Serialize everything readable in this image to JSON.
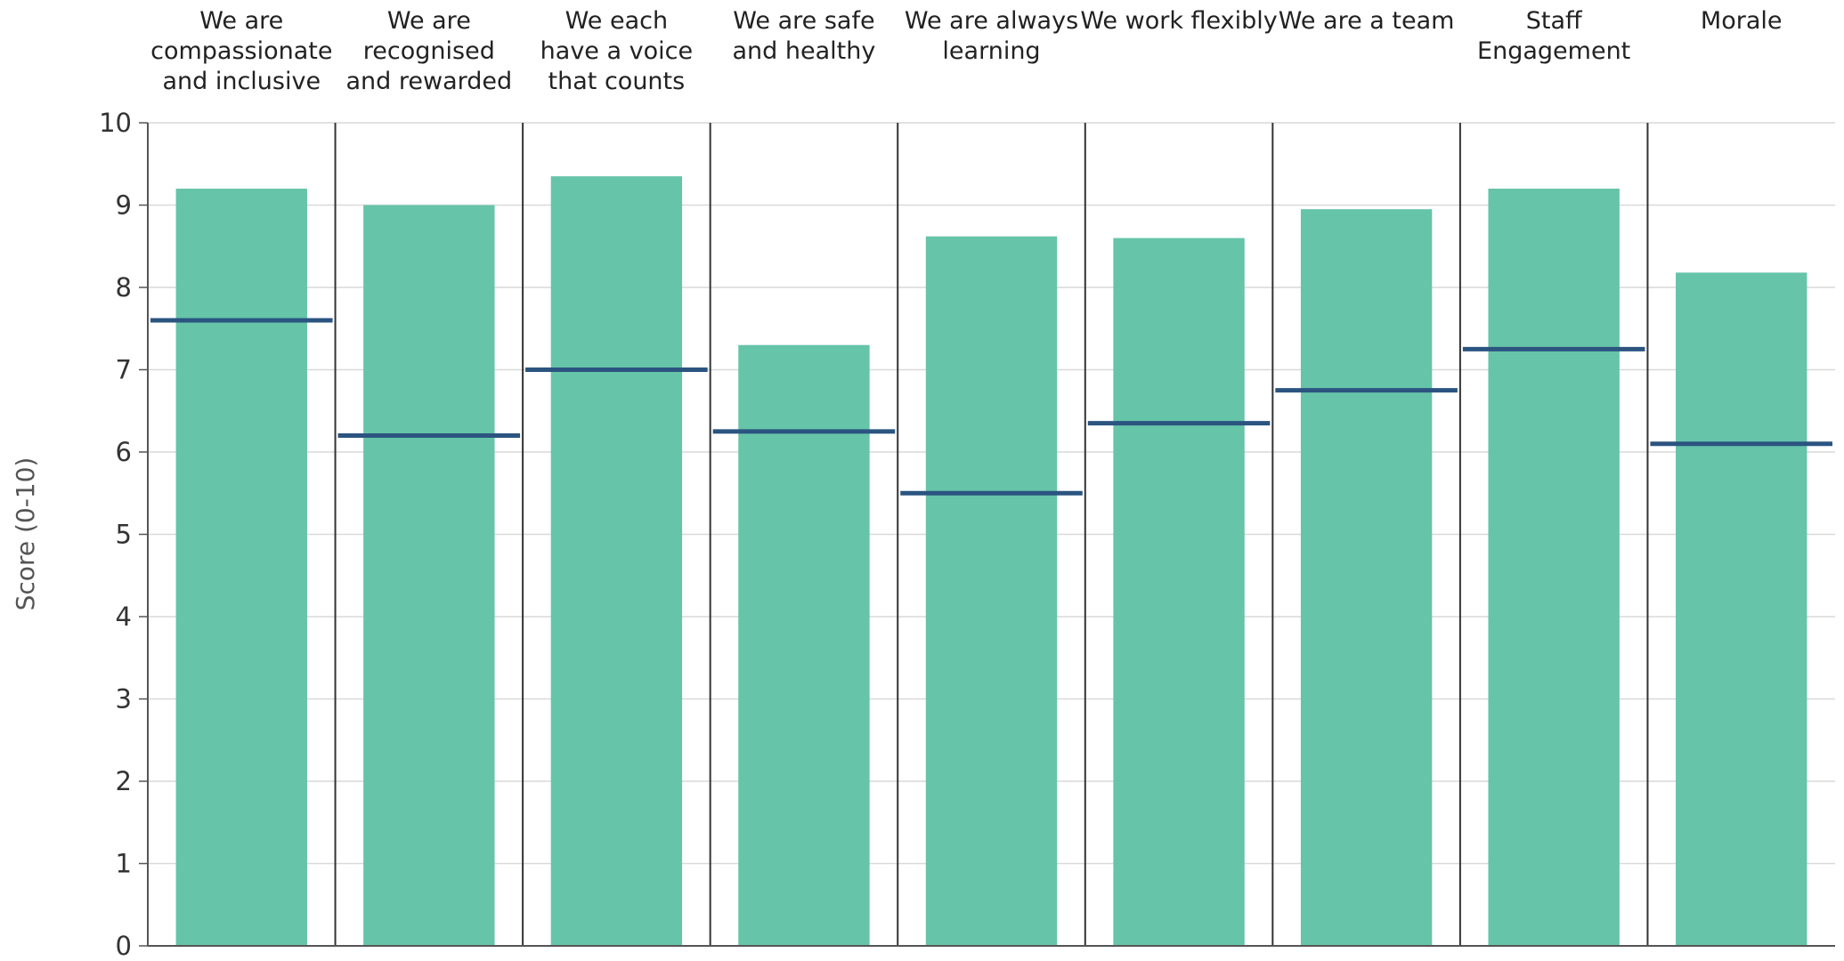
{
  "chart_data": {
    "type": "bar",
    "title": "",
    "xlabel": "",
    "ylabel": "Score (0-10)",
    "ylim": [
      0,
      10
    ],
    "yticks": [
      0,
      1,
      2,
      3,
      4,
      5,
      6,
      7,
      8,
      9,
      10
    ],
    "grid": true,
    "categories": [
      [
        "We are",
        "compassionate",
        "and inclusive"
      ],
      [
        "We are",
        "recognised",
        "and rewarded"
      ],
      [
        "We each",
        "have a voice",
        "that counts"
      ],
      [
        "We are safe",
        "and healthy"
      ],
      [
        "We are always",
        "learning"
      ],
      [
        "We work flexibly"
      ],
      [
        "We are a team"
      ],
      [
        "Staff",
        "Engagement"
      ],
      [
        "Morale"
      ]
    ],
    "series": [
      {
        "type": "bar",
        "color": "#66c4a9",
        "values": [
          9.2,
          9.0,
          9.35,
          7.3,
          8.62,
          8.6,
          8.95,
          9.2,
          8.18
        ]
      },
      {
        "type": "marker",
        "color": "#2b5480",
        "values": [
          7.6,
          6.2,
          7.0,
          6.25,
          5.5,
          6.35,
          6.75,
          7.25,
          6.1
        ]
      }
    ],
    "colors": {
      "grid": "#d9d9d9",
      "axis": "#555555",
      "separator": "#333333"
    }
  }
}
